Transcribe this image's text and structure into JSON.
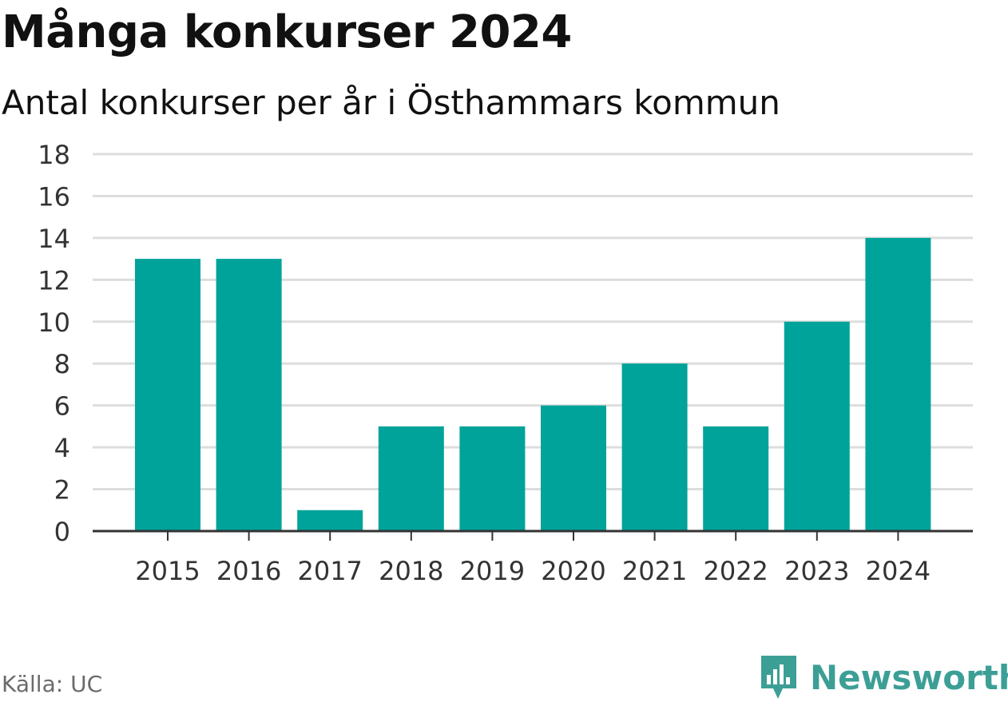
{
  "chart_data": {
    "type": "bar",
    "title": "Många konkurser 2024",
    "subtitle": "Antal konkurser per år i Östhammars kommun",
    "categories": [
      "2015",
      "2016",
      "2017",
      "2018",
      "2019",
      "2020",
      "2021",
      "2022",
      "2023",
      "2024"
    ],
    "values": [
      13,
      13,
      1,
      5,
      5,
      6,
      8,
      5,
      10,
      14
    ],
    "ylim": [
      0,
      18
    ],
    "yticks": [
      0,
      2,
      4,
      6,
      8,
      10,
      12,
      14,
      16,
      18
    ],
    "grid": true,
    "bar_color": "#00a39a",
    "source": "Källa: UC"
  },
  "brand": {
    "name": "Newsworthy",
    "color": "#3c9f96",
    "icon": "bar-chart-speech-bubble-icon"
  }
}
